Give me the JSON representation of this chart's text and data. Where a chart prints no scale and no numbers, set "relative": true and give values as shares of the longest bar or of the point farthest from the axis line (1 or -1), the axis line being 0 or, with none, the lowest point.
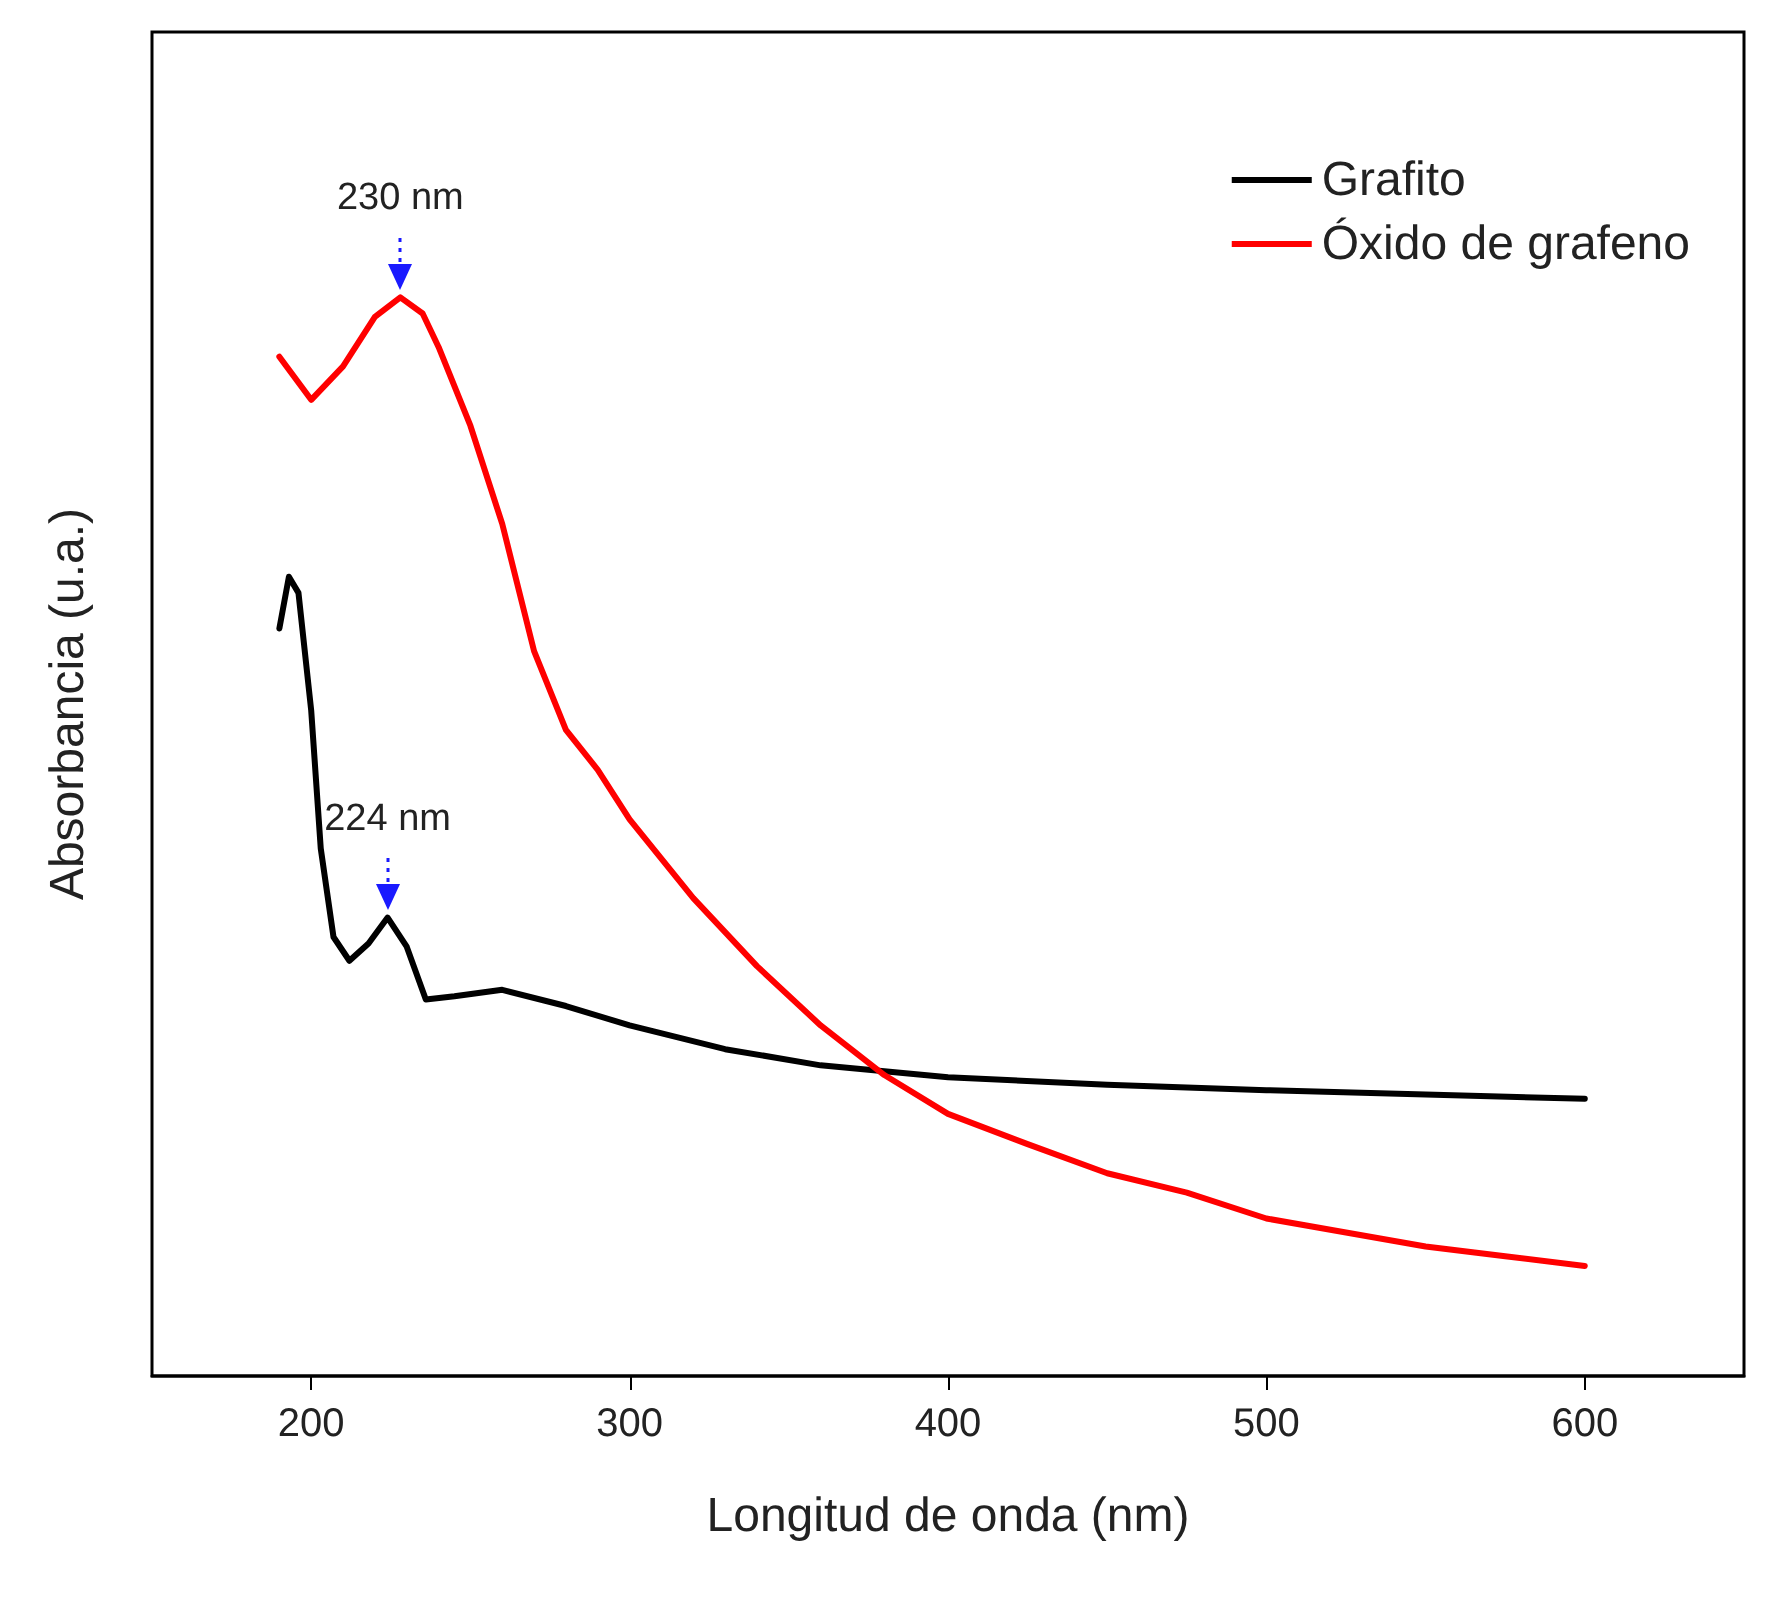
{
  "chart_data": {
    "type": "line",
    "xlabel": "Longitud de onda (nm)",
    "ylabel": "Absorbancia (u.a.)",
    "relative": true,
    "xlim": [
      150,
      650
    ],
    "xticks": [
      200,
      300,
      400,
      500,
      600
    ],
    "grid": false,
    "legend": "top right",
    "marker": "none",
    "line_style": "solid",
    "annotations": [
      {
        "text": "230 nm",
        "x": 228,
        "y": 1.0
      },
      {
        "text": "224 nm",
        "x": 224,
        "y": 0.425
      }
    ],
    "series": [
      {
        "name": "Grafito",
        "color": "#000000",
        "x": [
          190,
          193,
          196,
          200,
          203,
          207,
          212,
          218,
          224,
          230,
          236,
          245,
          260,
          280,
          300,
          330,
          360,
          400,
          450,
          500,
          550,
          600
        ],
        "values": [
          0.693,
          0.741,
          0.726,
          0.617,
          0.489,
          0.407,
          0.385,
          0.401,
          0.425,
          0.398,
          0.349,
          0.352,
          0.358,
          0.343,
          0.325,
          0.303,
          0.288,
          0.277,
          0.27,
          0.265,
          0.261,
          0.257
        ]
      },
      {
        "name": "Óxido de grafeno",
        "color": "#ff0000",
        "x": [
          190,
          200,
          210,
          220,
          228,
          235,
          240,
          250,
          260,
          270,
          280,
          290,
          300,
          320,
          340,
          360,
          380,
          400,
          425,
          450,
          475,
          500,
          525,
          550,
          575,
          600
        ],
        "values": [
          0.945,
          0.905,
          0.936,
          0.982,
          1.0,
          0.985,
          0.954,
          0.881,
          0.79,
          0.672,
          0.599,
          0.562,
          0.516,
          0.443,
          0.38,
          0.325,
          0.279,
          0.243,
          0.215,
          0.188,
          0.17,
          0.146,
          0.133,
          0.12,
          0.111,
          0.102
        ]
      }
    ]
  }
}
